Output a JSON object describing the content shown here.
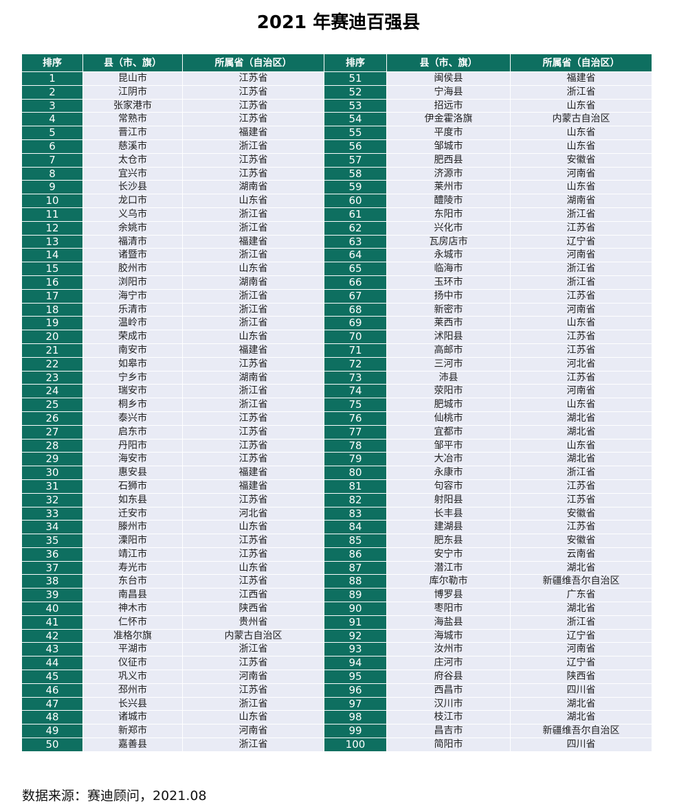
{
  "title": "2021 年赛迪百强县",
  "headers": [
    "排序",
    "县（市、旗）",
    "所属省（自治区）",
    "排序",
    "县（市、旗）",
    "所属省（自治区）"
  ],
  "colors": {
    "header_bg": "#0e6f60",
    "cell_bg": "#e9ebf5"
  },
  "rankings": [
    [
      "1",
      "昆山市",
      "江苏省"
    ],
    [
      "2",
      "江阴市",
      "江苏省"
    ],
    [
      "3",
      "张家港市",
      "江苏省"
    ],
    [
      "4",
      "常熟市",
      "江苏省"
    ],
    [
      "5",
      "晋江市",
      "福建省"
    ],
    [
      "6",
      "慈溪市",
      "浙江省"
    ],
    [
      "7",
      "太仓市",
      "江苏省"
    ],
    [
      "8",
      "宜兴市",
      "江苏省"
    ],
    [
      "9",
      "长沙县",
      "湖南省"
    ],
    [
      "10",
      "龙口市",
      "山东省"
    ],
    [
      "11",
      "义乌市",
      "浙江省"
    ],
    [
      "12",
      "余姚市",
      "浙江省"
    ],
    [
      "13",
      "福清市",
      "福建省"
    ],
    [
      "14",
      "诸暨市",
      "浙江省"
    ],
    [
      "15",
      "胶州市",
      "山东省"
    ],
    [
      "16",
      "浏阳市",
      "湖南省"
    ],
    [
      "17",
      "海宁市",
      "浙江省"
    ],
    [
      "18",
      "乐清市",
      "浙江省"
    ],
    [
      "19",
      "温岭市",
      "浙江省"
    ],
    [
      "20",
      "荣成市",
      "山东省"
    ],
    [
      "21",
      "南安市",
      "福建省"
    ],
    [
      "22",
      "如皋市",
      "江苏省"
    ],
    [
      "23",
      "宁乡市",
      "湖南省"
    ],
    [
      "24",
      "瑞安市",
      "浙江省"
    ],
    [
      "25",
      "桐乡市",
      "浙江省"
    ],
    [
      "26",
      "泰兴市",
      "江苏省"
    ],
    [
      "27",
      "启东市",
      "江苏省"
    ],
    [
      "28",
      "丹阳市",
      "江苏省"
    ],
    [
      "29",
      "海安市",
      "江苏省"
    ],
    [
      "30",
      "惠安县",
      "福建省"
    ],
    [
      "31",
      "石狮市",
      "福建省"
    ],
    [
      "32",
      "如东县",
      "江苏省"
    ],
    [
      "33",
      "迁安市",
      "河北省"
    ],
    [
      "34",
      "滕州市",
      "山东省"
    ],
    [
      "35",
      "溧阳市",
      "江苏省"
    ],
    [
      "36",
      "靖江市",
      "江苏省"
    ],
    [
      "37",
      "寿光市",
      "山东省"
    ],
    [
      "38",
      "东台市",
      "江苏省"
    ],
    [
      "39",
      "南昌县",
      "江西省"
    ],
    [
      "40",
      "神木市",
      "陕西省"
    ],
    [
      "41",
      "仁怀市",
      "贵州省"
    ],
    [
      "42",
      "准格尔旗",
      "内蒙古自治区"
    ],
    [
      "43",
      "平湖市",
      "浙江省"
    ],
    [
      "44",
      "仪征市",
      "江苏省"
    ],
    [
      "45",
      "巩义市",
      "河南省"
    ],
    [
      "46",
      "邳州市",
      "江苏省"
    ],
    [
      "47",
      "长兴县",
      "浙江省"
    ],
    [
      "48",
      "诸城市",
      "山东省"
    ],
    [
      "49",
      "新郑市",
      "河南省"
    ],
    [
      "50",
      "嘉善县",
      "浙江省"
    ],
    [
      "51",
      "闽侯县",
      "福建省"
    ],
    [
      "52",
      "宁海县",
      "浙江省"
    ],
    [
      "53",
      "招远市",
      "山东省"
    ],
    [
      "54",
      "伊金霍洛旗",
      "内蒙古自治区"
    ],
    [
      "55",
      "平度市",
      "山东省"
    ],
    [
      "56",
      "邹城市",
      "山东省"
    ],
    [
      "57",
      "肥西县",
      "安徽省"
    ],
    [
      "58",
      "济源市",
      "河南省"
    ],
    [
      "59",
      "莱州市",
      "山东省"
    ],
    [
      "60",
      "醴陵市",
      "湖南省"
    ],
    [
      "61",
      "东阳市",
      "浙江省"
    ],
    [
      "62",
      "兴化市",
      "江苏省"
    ],
    [
      "63",
      "瓦房店市",
      "辽宁省"
    ],
    [
      "64",
      "永城市",
      "河南省"
    ],
    [
      "65",
      "临海市",
      "浙江省"
    ],
    [
      "66",
      "玉环市",
      "浙江省"
    ],
    [
      "67",
      "扬中市",
      "江苏省"
    ],
    [
      "68",
      "新密市",
      "河南省"
    ],
    [
      "69",
      "莱西市",
      "山东省"
    ],
    [
      "70",
      "沭阳县",
      "江苏省"
    ],
    [
      "71",
      "高邮市",
      "江苏省"
    ],
    [
      "72",
      "三河市",
      "河北省"
    ],
    [
      "73",
      "沛县",
      "江苏省"
    ],
    [
      "74",
      "荥阳市",
      "河南省"
    ],
    [
      "75",
      "肥城市",
      "山东省"
    ],
    [
      "76",
      "仙桃市",
      "湖北省"
    ],
    [
      "77",
      "宜都市",
      "湖北省"
    ],
    [
      "78",
      "邹平市",
      "山东省"
    ],
    [
      "79",
      "大冶市",
      "湖北省"
    ],
    [
      "80",
      "永康市",
      "浙江省"
    ],
    [
      "81",
      "句容市",
      "江苏省"
    ],
    [
      "82",
      "射阳县",
      "江苏省"
    ],
    [
      "83",
      "长丰县",
      "安徽省"
    ],
    [
      "84",
      "建湖县",
      "江苏省"
    ],
    [
      "85",
      "肥东县",
      "安徽省"
    ],
    [
      "86",
      "安宁市",
      "云南省"
    ],
    [
      "87",
      "潜江市",
      "湖北省"
    ],
    [
      "88",
      "库尔勒市",
      "新疆维吾尔自治区"
    ],
    [
      "89",
      "博罗县",
      "广东省"
    ],
    [
      "90",
      "枣阳市",
      "湖北省"
    ],
    [
      "91",
      "海盐县",
      "浙江省"
    ],
    [
      "92",
      "海城市",
      "辽宁省"
    ],
    [
      "93",
      "汝州市",
      "河南省"
    ],
    [
      "94",
      "庄河市",
      "辽宁省"
    ],
    [
      "95",
      "府谷县",
      "陕西省"
    ],
    [
      "96",
      "西昌市",
      "四川省"
    ],
    [
      "97",
      "汉川市",
      "湖北省"
    ],
    [
      "98",
      "枝江市",
      "湖北省"
    ],
    [
      "99",
      "昌吉市",
      "新疆维吾尔自治区"
    ],
    [
      "100",
      "简阳市",
      "四川省"
    ]
  ],
  "source": "数据来源：赛迪顾问，2021.08"
}
